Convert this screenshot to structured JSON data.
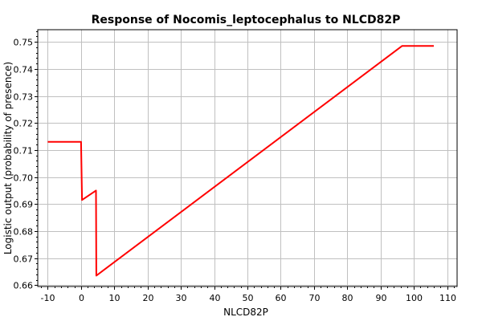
{
  "chart_data": {
    "type": "line",
    "title": "Response of Nocomis_leptocephalus to NLCD82P",
    "xlabel": "NLCD82P",
    "ylabel": "Logistic output (probability of presence)",
    "xlim": [
      -13,
      113
    ],
    "ylim": [
      0.6595,
      0.7545
    ],
    "xticks": [
      -10,
      0,
      10,
      20,
      30,
      40,
      50,
      60,
      70,
      80,
      90,
      100,
      110
    ],
    "yticks": [
      0.66,
      0.67,
      0.68,
      0.69,
      0.7,
      0.71,
      0.72,
      0.73,
      0.74,
      0.75
    ],
    "ytick_labels": [
      "0.66",
      "0.67",
      "0.68",
      "0.69",
      "0.70",
      "0.71",
      "0.72",
      "0.73",
      "0.74",
      "0.75"
    ],
    "grid": true,
    "series": [
      {
        "color": "#ff0000",
        "x": [
          -10,
          0,
          0.3,
          4.5,
          4.6,
          96.5,
          106
        ],
        "y": [
          0.713,
          0.713,
          0.6915,
          0.695,
          0.6635,
          0.7485,
          0.7485
        ]
      }
    ]
  }
}
